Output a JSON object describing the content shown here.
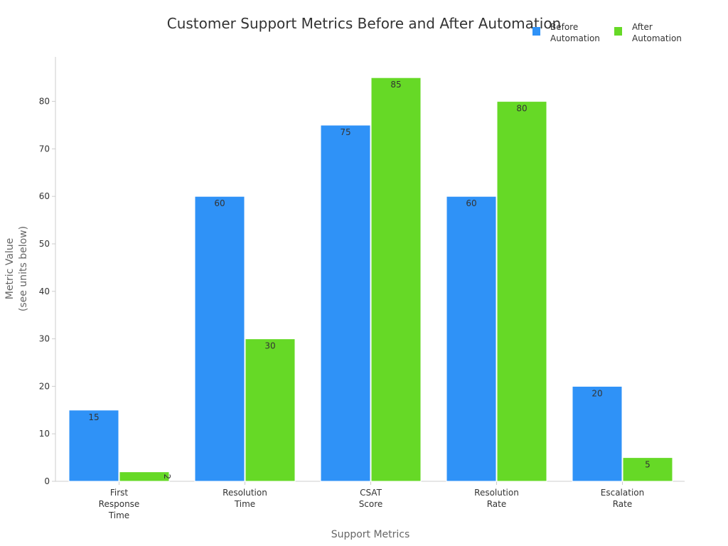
{
  "chart_data": {
    "type": "bar",
    "title": "Customer Support Metrics Before and After Automation",
    "xlabel": "Support Metrics",
    "ylabel_lines": [
      "Metric Value",
      "(see units below)"
    ],
    "categories": [
      [
        "First",
        "Response",
        "Time"
      ],
      [
        "Resolution",
        "Time"
      ],
      [
        "CSAT",
        "Score"
      ],
      [
        "Resolution",
        "Rate"
      ],
      [
        "Escalation",
        "Rate"
      ]
    ],
    "series": [
      {
        "name_lines": [
          "Before",
          "Automation"
        ],
        "color": "#2f92f7",
        "values": [
          15,
          60,
          75,
          60,
          20
        ]
      },
      {
        "name_lines": [
          "After",
          "Automation"
        ],
        "color": "#66d926",
        "values": [
          2,
          30,
          85,
          80,
          5
        ]
      }
    ],
    "ylim": [
      0,
      89.3
    ],
    "yticks": [
      0,
      10,
      20,
      30,
      40,
      50,
      60,
      70,
      80
    ],
    "grid": false,
    "legend_position": "top-right"
  }
}
